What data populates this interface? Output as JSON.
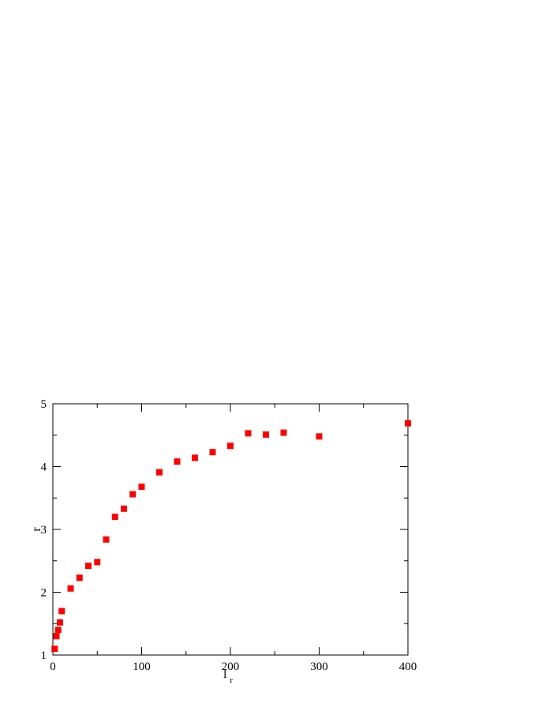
{
  "chart_data": {
    "type": "scatter",
    "title": "",
    "xlabel_main": "l",
    "xlabel_sub": "r",
    "ylabel": "r",
    "xlim": [
      0,
      400
    ],
    "ylim": [
      1,
      5
    ],
    "xticks": [
      0,
      100,
      200,
      300,
      400
    ],
    "yticks": [
      1,
      2,
      3,
      4,
      5
    ],
    "grid": false,
    "marker": "square",
    "marker_color": "#ff0000",
    "series": [
      {
        "x": [
          2,
          4,
          6,
          8,
          10,
          20,
          30,
          40,
          50,
          60,
          70,
          80,
          90,
          100,
          120,
          140,
          160,
          180,
          200,
          220,
          240,
          260,
          300,
          400
        ],
        "y": [
          1.1,
          1.3,
          1.4,
          1.52,
          1.7,
          2.06,
          2.23,
          2.42,
          2.48,
          2.84,
          3.2,
          3.33,
          3.56,
          3.68,
          3.91,
          4.08,
          4.14,
          4.23,
          4.33,
          4.53,
          4.51,
          4.54,
          4.48,
          4.69
        ]
      }
    ]
  }
}
